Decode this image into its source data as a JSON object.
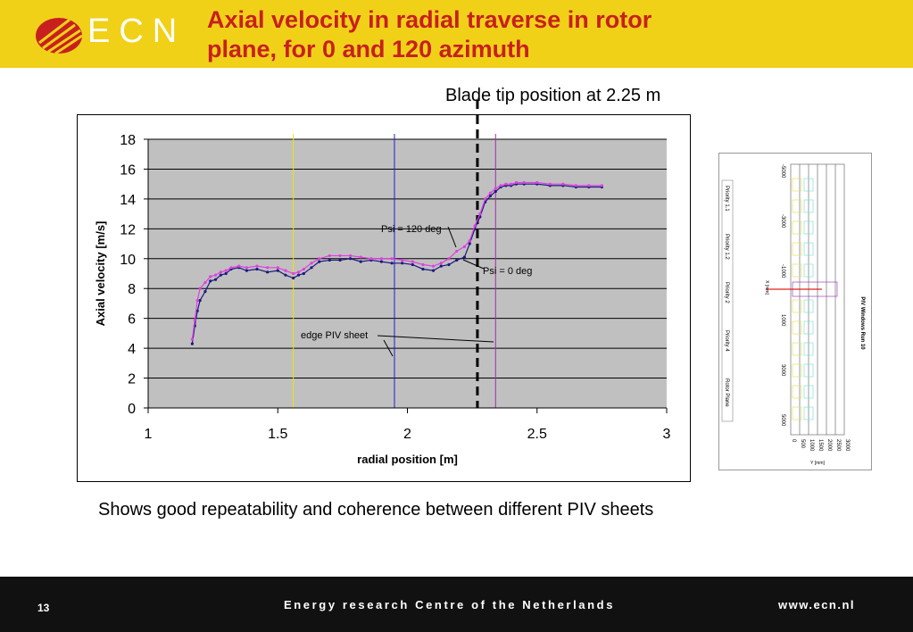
{
  "header": {
    "logo_text": "ECN",
    "title_line1": "Axial velocity in radial traverse in rotor",
    "title_line2": "plane, for 0 and 120 azimuth"
  },
  "caption": "Blade tip position at 2.25 m",
  "bottom_text": "Shows good repeatability and coherence between different PIV sheets",
  "footer": {
    "page_number": "13",
    "organization": "Energy research Centre of the Netherlands",
    "url": "www.ecn.nl"
  },
  "colors": {
    "header_bg": "#f0d118",
    "title": "#c8201f",
    "plot_bg": "#c0c0c0",
    "series_psi0": "#1a1a80",
    "series_psi120": "#e040e0",
    "footer_bg": "#111111"
  },
  "chart_data": {
    "type": "scatter",
    "xlabel": "radial position [m]",
    "ylabel": "Axial velocity [m/s]",
    "xlim": [
      1,
      3
    ],
    "ylim": [
      0,
      18
    ],
    "xticks": [
      "1",
      "1.5",
      "2",
      "2.5",
      "3"
    ],
    "yticks": [
      "0",
      "2",
      "4",
      "6",
      "8",
      "10",
      "12",
      "14",
      "16",
      "18"
    ],
    "grid": "horizontal",
    "series": [
      {
        "label": "Psi = 0 deg",
        "color": "#1a1a80",
        "x": [
          1.17,
          1.18,
          1.19,
          1.2,
          1.22,
          1.24,
          1.26,
          1.28,
          1.3,
          1.32,
          1.35,
          1.38,
          1.42,
          1.46,
          1.5,
          1.53,
          1.56,
          1.58,
          1.6,
          1.63,
          1.66,
          1.7,
          1.74,
          1.78,
          1.82,
          1.86,
          1.9,
          1.94,
          1.98,
          2.02,
          2.06,
          2.1,
          2.13,
          2.16,
          2.19,
          2.22,
          2.24,
          2.26,
          2.28,
          2.3,
          2.32,
          2.34,
          2.36,
          2.38,
          2.4,
          2.42,
          2.45,
          2.5,
          2.55,
          2.6,
          2.65,
          2.7,
          2.75
        ],
        "y": [
          4.3,
          5.5,
          6.5,
          7.2,
          7.8,
          8.5,
          8.6,
          8.9,
          9.0,
          9.3,
          9.4,
          9.2,
          9.3,
          9.1,
          9.2,
          8.9,
          8.7,
          8.9,
          9.0,
          9.4,
          9.8,
          9.9,
          9.9,
          10.0,
          9.8,
          9.9,
          9.8,
          9.7,
          9.7,
          9.6,
          9.3,
          9.2,
          9.5,
          9.6,
          9.9,
          10.1,
          11.0,
          12.0,
          12.8,
          13.8,
          14.2,
          14.5,
          14.8,
          14.9,
          14.9,
          15.0,
          15.0,
          15.0,
          14.9,
          14.9,
          14.8,
          14.8,
          14.8
        ]
      },
      {
        "label": "Psi = 120 deg",
        "color": "#e040e0",
        "x": [
          1.17,
          1.18,
          1.19,
          1.2,
          1.22,
          1.24,
          1.26,
          1.28,
          1.3,
          1.32,
          1.35,
          1.38,
          1.42,
          1.46,
          1.5,
          1.53,
          1.56,
          1.58,
          1.6,
          1.63,
          1.66,
          1.7,
          1.74,
          1.78,
          1.82,
          1.86,
          1.9,
          1.94,
          1.98,
          2.02,
          2.06,
          2.1,
          2.13,
          2.16,
          2.19,
          2.22,
          2.24,
          2.26,
          2.28,
          2.3,
          2.32,
          2.34,
          2.36,
          2.38,
          2.4,
          2.42,
          2.45,
          2.5,
          2.55,
          2.6,
          2.65,
          2.7,
          2.75
        ],
        "y": [
          4.6,
          5.9,
          7.2,
          8.0,
          8.4,
          8.8,
          8.9,
          9.1,
          9.2,
          9.4,
          9.5,
          9.4,
          9.5,
          9.4,
          9.4,
          9.2,
          9.0,
          9.1,
          9.3,
          9.7,
          10.0,
          10.2,
          10.2,
          10.2,
          10.1,
          10.0,
          10.0,
          10.0,
          9.9,
          9.8,
          9.6,
          9.5,
          9.7,
          10.0,
          10.5,
          10.8,
          11.2,
          12.2,
          13.0,
          14.0,
          14.4,
          14.7,
          14.9,
          15.0,
          15.0,
          15.1,
          15.1,
          15.1,
          15.0,
          15.0,
          14.9,
          14.9,
          14.9
        ]
      }
    ],
    "vertical_lines": [
      {
        "x": 1.56,
        "color": "#f2e600"
      },
      {
        "x": 1.95,
        "color": "#2020d0"
      },
      {
        "x": 2.27,
        "color": "#000000",
        "style": "dashed"
      },
      {
        "x": 2.34,
        "color": "#a030a0"
      }
    ],
    "annotations": [
      {
        "text": "Psi = 120 deg"
      },
      {
        "text": "Psi = 0 deg"
      },
      {
        "text": "edge PIV sheet"
      }
    ]
  },
  "inset": {
    "title": "PIV Windows Run 10",
    "xlabel": "Y [mm]",
    "ylabel": "X [mm]",
    "yticks": [
      "0",
      "500",
      "1000",
      "1500",
      "2000",
      "2500",
      "3000"
    ],
    "xticks": [
      "-5000",
      "-3000",
      "-1000",
      "1000",
      "3000",
      "5000"
    ],
    "legend": [
      "Priority 1.1",
      "Priority 1.2",
      "Priority 2",
      "Priority 4",
      "Rotor Plane"
    ]
  }
}
